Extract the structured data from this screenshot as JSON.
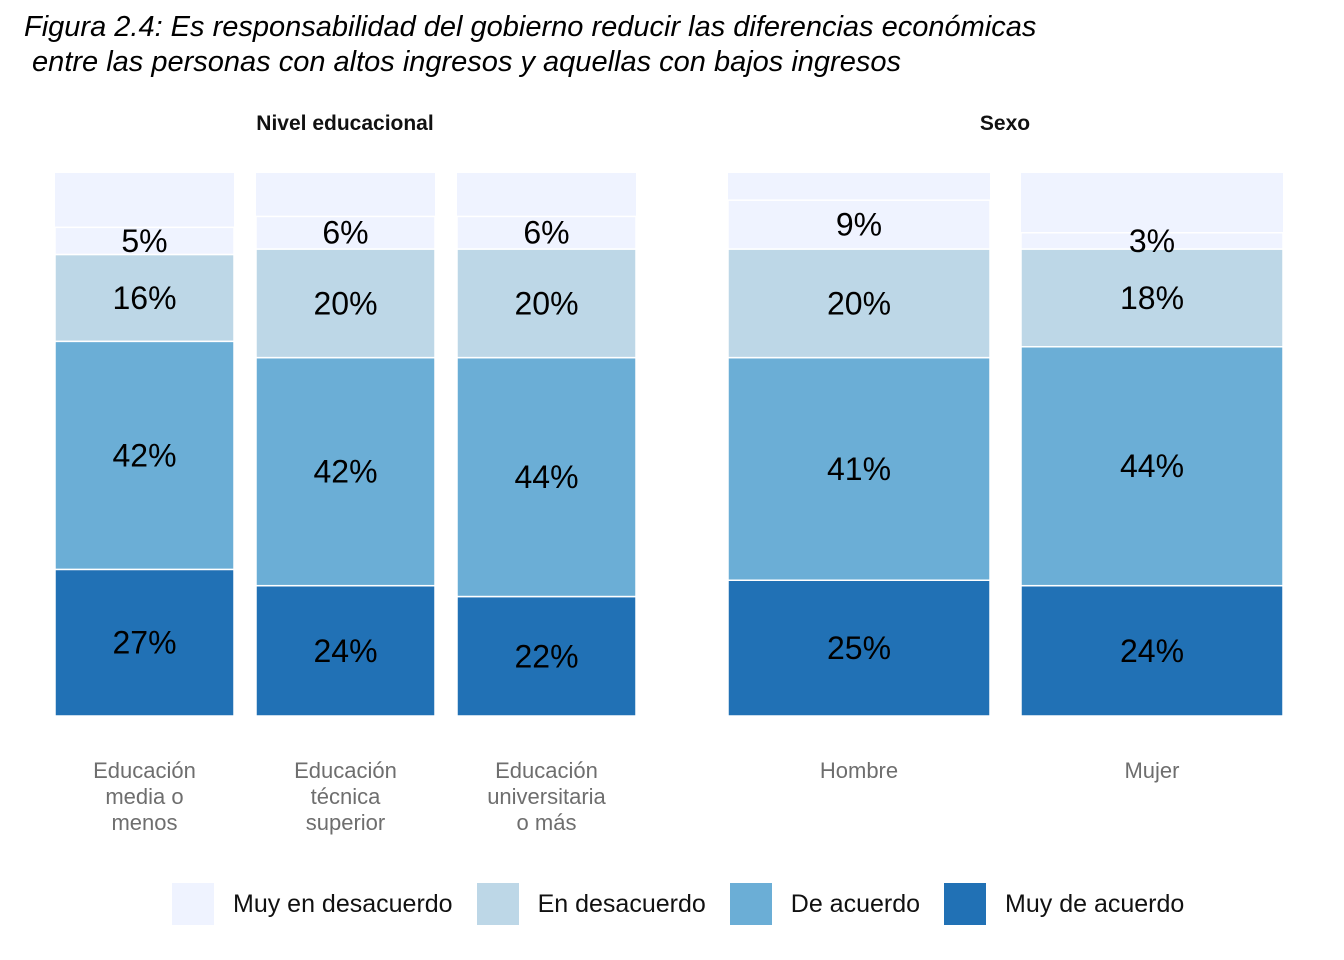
{
  "chart_data": {
    "type": "bar",
    "stacked": true,
    "normalized": true,
    "title": "Figura 2.4: Es responsabilidad del gobierno reducir las diferencias económicas\n entre las personas con altos ingresos y aquellas con bajos ingresos",
    "legend_position": "bottom",
    "series": [
      {
        "name": "Muy de acuerdo",
        "color": "#2171b5"
      },
      {
        "name": "De acuerdo",
        "color": "#6baed6"
      },
      {
        "name": "En desacuerdo",
        "color": "#bdd7e7"
      },
      {
        "name": "Muy en desacuerdo",
        "color": "#eff3ff"
      }
    ],
    "panels": [
      {
        "title": "Nivel educacional",
        "categories": [
          {
            "label": [
              "Educación",
              "media o",
              "menos"
            ],
            "values": [
              27,
              42,
              16,
              5
            ]
          },
          {
            "label": [
              "Educación",
              "técnica",
              "superior"
            ],
            "values": [
              24,
              42,
              20,
              6
            ]
          },
          {
            "label": [
              "Educación",
              "universitaria",
              "o más"
            ],
            "values": [
              22,
              44,
              20,
              6
            ]
          }
        ]
      },
      {
        "title": "Sexo",
        "categories": [
          {
            "label": [
              "Hombre"
            ],
            "values": [
              25,
              41,
              20,
              9
            ]
          },
          {
            "label": [
              "Mujer"
            ],
            "values": [
              24,
              44,
              18,
              3
            ]
          }
        ]
      }
    ]
  },
  "legend": [
    {
      "label": "Muy en desacuerdo",
      "color": "#eff3ff"
    },
    {
      "label": "En desacuerdo",
      "color": "#bdd7e7"
    },
    {
      "label": "De acuerdo",
      "color": "#6baed6"
    },
    {
      "label": "Muy de acuerdo",
      "color": "#2171b5"
    }
  ]
}
